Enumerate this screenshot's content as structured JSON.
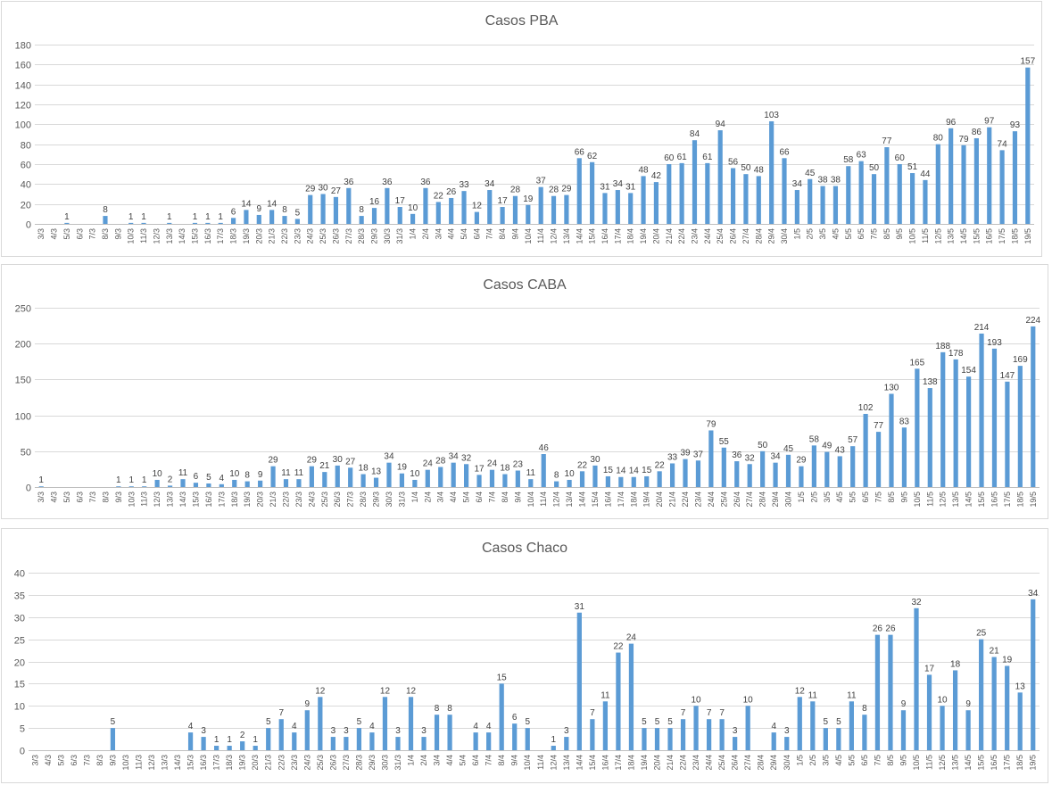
{
  "chart_data": [
    {
      "type": "bar",
      "title": "Casos PBA",
      "color": "#5b9bd5",
      "ylim": [
        0,
        180
      ],
      "yticks": [
        0,
        20,
        40,
        60,
        80,
        100,
        120,
        140,
        160,
        180
      ],
      "grid": true,
      "categories": [
        "3/3",
        "4/3",
        "5/3",
        "6/3",
        "7/3",
        "8/3",
        "9/3",
        "10/3",
        "11/3",
        "12/3",
        "13/3",
        "14/3",
        "15/3",
        "16/3",
        "17/3",
        "18/3",
        "19/3",
        "20/3",
        "21/3",
        "22/3",
        "23/3",
        "24/3",
        "25/3",
        "26/3",
        "27/3",
        "28/3",
        "29/3",
        "30/3",
        "31/3",
        "1/4",
        "2/4",
        "3/4",
        "4/4",
        "5/4",
        "6/4",
        "7/4",
        "8/4",
        "9/4",
        "10/4",
        "11/4",
        "12/4",
        "13/4",
        "14/4",
        "15/4",
        "16/4",
        "17/4",
        "18/4",
        "19/4",
        "20/4",
        "21/4",
        "22/4",
        "23/4",
        "24/4",
        "25/4",
        "26/4",
        "27/4",
        "28/4",
        "29/4",
        "30/4",
        "1/5",
        "2/5",
        "3/5",
        "4/5",
        "5/5",
        "6/5",
        "7/5",
        "8/5",
        "9/5",
        "10/5",
        "11/5",
        "12/5",
        "13/5",
        "14/5",
        "15/5",
        "16/5",
        "17/5",
        "18/5",
        "19/5"
      ],
      "values": [
        0,
        0,
        1,
        0,
        0,
        8,
        0,
        1,
        1,
        0,
        1,
        0,
        1,
        1,
        1,
        6,
        14,
        9,
        14,
        8,
        5,
        29,
        30,
        27,
        36,
        8,
        16,
        36,
        17,
        10,
        36,
        22,
        26,
        33,
        12,
        34,
        17,
        28,
        19,
        37,
        28,
        29,
        66,
        62,
        31,
        34,
        31,
        48,
        42,
        60,
        61,
        84,
        61,
        94,
        56,
        50,
        48,
        103,
        66,
        34,
        45,
        38,
        38,
        58,
        63,
        50,
        77,
        60,
        51,
        44,
        80,
        96,
        79,
        86,
        97,
        74,
        93,
        157
      ],
      "label_values": [
        "",
        "",
        "1",
        "",
        "",
        "8",
        "",
        "1",
        "1",
        "",
        "1",
        "",
        "1",
        "1",
        "1",
        "6",
        "14",
        "9",
        "14",
        "8",
        "5",
        "29",
        "30",
        "27",
        "36",
        "8",
        "16",
        "36",
        "17",
        "10",
        "36",
        "22",
        "26",
        "33",
        "12",
        "34",
        "17",
        "28",
        "19",
        "37",
        "28",
        "29",
        "66",
        "62",
        "31",
        "34",
        "31",
        "48",
        "42",
        "60",
        "61",
        "84",
        "61",
        "94",
        "56",
        "50",
        "48",
        "103",
        "66",
        "34",
        "45",
        "38",
        "38",
        "58",
        "63",
        "50",
        "77",
        "60",
        "51",
        "44",
        "80",
        "96",
        "79",
        "86",
        "97",
        "74",
        "93",
        "157"
      ]
    },
    {
      "type": "bar",
      "title": "Casos CABA",
      "color": "#5b9bd5",
      "ylim": [
        0,
        250
      ],
      "yticks": [
        0,
        50,
        100,
        150,
        200,
        250
      ],
      "grid": true,
      "categories": [
        "3/3",
        "4/3",
        "5/3",
        "6/3",
        "7/3",
        "8/3",
        "9/3",
        "10/3",
        "11/3",
        "12/3",
        "13/3",
        "14/3",
        "15/3",
        "16/3",
        "17/3",
        "18/3",
        "19/3",
        "20/3",
        "21/3",
        "22/3",
        "23/3",
        "24/3",
        "25/3",
        "26/3",
        "27/3",
        "28/3",
        "29/3",
        "30/3",
        "31/3",
        "1/4",
        "2/4",
        "3/4",
        "4/4",
        "5/4",
        "6/4",
        "7/4",
        "8/4",
        "9/4",
        "10/4",
        "11/4",
        "12/4",
        "13/4",
        "14/4",
        "15/4",
        "16/4",
        "17/4",
        "18/4",
        "19/4",
        "20/4",
        "21/4",
        "22/4",
        "23/4",
        "24/4",
        "25/4",
        "26/4",
        "27/4",
        "28/4",
        "29/4",
        "30/4",
        "1/5",
        "2/5",
        "3/5",
        "4/5",
        "5/5",
        "6/5",
        "7/5",
        "8/5",
        "9/5",
        "10/5",
        "11/5",
        "12/5",
        "13/5",
        "14/5",
        "15/5",
        "16/5",
        "17/5",
        "18/5",
        "19/5"
      ],
      "values": [
        1,
        0,
        0,
        0,
        0,
        0,
        1,
        1,
        1,
        10,
        2,
        11,
        6,
        5,
        4,
        10,
        8,
        9,
        29,
        11,
        11,
        29,
        21,
        30,
        27,
        18,
        13,
        34,
        19,
        10,
        24,
        28,
        34,
        32,
        17,
        24,
        18,
        23,
        11,
        46,
        8,
        10,
        22,
        30,
        15,
        14,
        14,
        15,
        22,
        33,
        39,
        37,
        79,
        55,
        36,
        32,
        50,
        34,
        45,
        29,
        58,
        49,
        43,
        57,
        102,
        77,
        130,
        83,
        165,
        138,
        188,
        178,
        154,
        214,
        193,
        147,
        169,
        224
      ],
      "label_values": [
        "1",
        "",
        "",
        "",
        "",
        "",
        "1",
        "1",
        "1",
        "10",
        "2",
        "11",
        "6",
        "5",
        "4",
        "10",
        "8",
        "9",
        "29",
        "11",
        "11",
        "29",
        "21",
        "30",
        "27",
        "18",
        "13",
        "34",
        "19",
        "10",
        "24",
        "28",
        "34",
        "32",
        "17",
        "24",
        "18",
        "23",
        "11",
        "46",
        "8",
        "10",
        "22",
        "30",
        "15",
        "14",
        "14",
        "15",
        "22",
        "33",
        "39",
        "37",
        "79",
        "55",
        "36",
        "32",
        "50",
        "34",
        "45",
        "29",
        "58",
        "49",
        "43",
        "57",
        "102",
        "77",
        "130",
        "83",
        "165",
        "138",
        "188",
        "178",
        "154",
        "214",
        "193",
        "147",
        "169",
        "224"
      ]
    },
    {
      "type": "bar",
      "title": "Casos Chaco",
      "color": "#5b9bd5",
      "ylim": [
        0,
        40
      ],
      "yticks": [
        0,
        5,
        10,
        15,
        20,
        25,
        30,
        35,
        40
      ],
      "grid": true,
      "categories": [
        "3/3",
        "4/3",
        "5/3",
        "6/3",
        "7/3",
        "8/3",
        "9/3",
        "10/3",
        "11/3",
        "12/3",
        "13/3",
        "14/3",
        "15/3",
        "16/3",
        "17/3",
        "18/3",
        "19/3",
        "20/3",
        "21/3",
        "22/3",
        "23/3",
        "24/3",
        "25/3",
        "26/3",
        "27/3",
        "28/3",
        "29/3",
        "30/3",
        "31/3",
        "1/4",
        "2/4",
        "3/4",
        "4/4",
        "5/4",
        "6/4",
        "7/4",
        "8/4",
        "9/4",
        "10/4",
        "11/4",
        "12/4",
        "13/4",
        "14/4",
        "15/4",
        "16/4",
        "17/4",
        "18/4",
        "19/4",
        "20/4",
        "21/4",
        "22/4",
        "23/4",
        "24/4",
        "25/4",
        "26/4",
        "27/4",
        "28/4",
        "29/4",
        "30/4",
        "1/5",
        "2/5",
        "3/5",
        "4/5",
        "5/5",
        "6/5",
        "7/5",
        "8/5",
        "9/5",
        "10/5",
        "11/5",
        "12/5",
        "13/5",
        "14/5",
        "15/5",
        "16/5",
        "17/5",
        "18/5",
        "19/5"
      ],
      "values": [
        0,
        0,
        0,
        0,
        0,
        0,
        5,
        0,
        0,
        0,
        0,
        0,
        4,
        3,
        1,
        1,
        2,
        1,
        5,
        7,
        4,
        9,
        12,
        3,
        3,
        5,
        4,
        12,
        3,
        12,
        3,
        8,
        8,
        0,
        4,
        4,
        15,
        6,
        5,
        0,
        1,
        3,
        31,
        7,
        11,
        22,
        24,
        5,
        5,
        5,
        7,
        10,
        7,
        7,
        3,
        10,
        0,
        4,
        3,
        12,
        11,
        5,
        5,
        11,
        8,
        26,
        26,
        9,
        32,
        17,
        10,
        18,
        9,
        25,
        21,
        19,
        13,
        34
      ],
      "label_values": [
        "",
        "",
        "",
        "",
        "",
        "",
        "5",
        "",
        "",
        "",
        "",
        "",
        "4",
        "3",
        "1",
        "1",
        "2",
        "1",
        "5",
        "7",
        "4",
        "9",
        "12",
        "3",
        "3",
        "5",
        "4",
        "12",
        "3",
        "12",
        "3",
        "8",
        "8",
        "",
        "4",
        "4",
        "15",
        "6",
        "5",
        "",
        "1",
        "3",
        "31",
        "7",
        "11",
        "22",
        "24",
        "5",
        "5",
        "5",
        "7",
        "10",
        "7",
        "7",
        "3",
        "10",
        "",
        "4",
        "3",
        "12",
        "11",
        "5",
        "5",
        "11",
        "8",
        "26",
        "26",
        "9",
        "32",
        "17",
        "10",
        "18",
        "9",
        "25",
        "21",
        "19",
        "13",
        "34"
      ]
    }
  ]
}
